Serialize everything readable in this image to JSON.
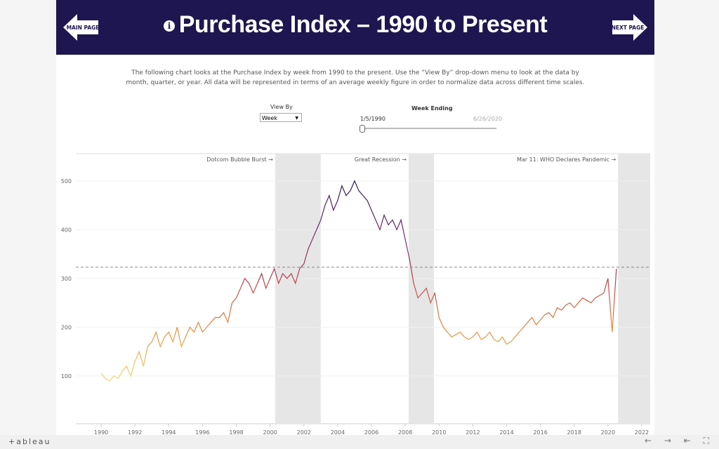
{
  "header": {
    "title": "Purchase Index – 1990 to Present",
    "main_page": "MAIN PAGE",
    "next_page": "NEXT PAGE"
  },
  "description": [
    "The following chart looks at the Purchase Index by week from 1990 to the present. Use the “View By” drop-down menu to look at the data by",
    "month, quarter, or year.  All data will be represented in terms of an average weekly figure in order to normalize data across different time scales."
  ],
  "controls": {
    "view_by_label": "View By",
    "view_by_value": "Week",
    "week_ending_label": "Week Ending",
    "week_ending_start": "1/5/1990",
    "week_ending_end": "6/26/2020"
  },
  "footer": {
    "logo": "+ableau"
  },
  "chart_data": {
    "type": "line",
    "x": [
      1990,
      1990.25,
      1990.5,
      1990.75,
      1991,
      1991.25,
      1991.5,
      1991.75,
      1992,
      1992.25,
      1992.5,
      1992.75,
      1993,
      1993.25,
      1993.5,
      1993.75,
      1994,
      1994.25,
      1994.5,
      1994.75,
      1995,
      1995.25,
      1995.5,
      1995.75,
      1996,
      1996.25,
      1996.5,
      1996.75,
      1997,
      1997.25,
      1997.5,
      1997.75,
      1998,
      1998.25,
      1998.5,
      1998.75,
      1999,
      1999.25,
      1999.5,
      1999.75,
      2000,
      2000.25,
      2000.5,
      2000.75,
      2001,
      2001.25,
      2001.5,
      2001.75,
      2002,
      2002.25,
      2002.5,
      2002.75,
      2003,
      2003.25,
      2003.5,
      2003.75,
      2004,
      2004.25,
      2004.5,
      2004.75,
      2005,
      2005.25,
      2005.5,
      2005.75,
      2006,
      2006.25,
      2006.5,
      2006.75,
      2007,
      2007.25,
      2007.5,
      2007.75,
      2008,
      2008.25,
      2008.5,
      2008.75,
      2009,
      2009.25,
      2009.5,
      2009.75,
      2010,
      2010.25,
      2010.5,
      2010.75,
      2011,
      2011.25,
      2011.5,
      2011.75,
      2012,
      2012.25,
      2012.5,
      2012.75,
      2013,
      2013.25,
      2013.5,
      2013.75,
      2014,
      2014.25,
      2014.5,
      2014.75,
      2015,
      2015.25,
      2015.5,
      2015.75,
      2016,
      2016.25,
      2016.5,
      2016.75,
      2017,
      2017.25,
      2017.5,
      2017.75,
      2018,
      2018.25,
      2018.5,
      2018.75,
      2019,
      2019.25,
      2019.5,
      2019.75,
      2020,
      2020.25,
      2020.5
    ],
    "values": [
      105,
      95,
      90,
      100,
      95,
      110,
      120,
      100,
      130,
      150,
      120,
      160,
      170,
      190,
      160,
      180,
      190,
      170,
      200,
      160,
      180,
      200,
      190,
      210,
      190,
      200,
      210,
      220,
      220,
      230,
      210,
      250,
      260,
      280,
      300,
      290,
      270,
      290,
      310,
      280,
      300,
      320,
      290,
      310,
      300,
      310,
      290,
      320,
      330,
      360,
      380,
      400,
      420,
      450,
      470,
      440,
      460,
      490,
      470,
      480,
      500,
      480,
      470,
      460,
      440,
      420,
      400,
      430,
      410,
      420,
      400,
      420,
      380,
      340,
      290,
      260,
      270,
      280,
      250,
      270,
      220,
      200,
      190,
      180,
      185,
      190,
      180,
      175,
      180,
      190,
      175,
      180,
      190,
      175,
      170,
      180,
      165,
      170,
      180,
      190,
      200,
      210,
      220,
      205,
      215,
      225,
      230,
      220,
      240,
      235,
      245,
      250,
      240,
      250,
      260,
      255,
      250,
      260,
      265,
      270,
      300,
      190,
      320
    ],
    "color_stops": [
      {
        "value": 100,
        "color": "#f2d46b"
      },
      {
        "value": 200,
        "color": "#e48a3c"
      },
      {
        "value": 300,
        "color": "#b93f4f"
      },
      {
        "value": 400,
        "color": "#6e2a72"
      },
      {
        "value": 500,
        "color": "#2b1b4e"
      }
    ],
    "xlim": [
      1988.5,
      2022.5
    ],
    "ylim": [
      2,
      556
    ],
    "xticks": [
      1990,
      1992,
      1994,
      1996,
      1998,
      2000,
      2002,
      2004,
      2006,
      2008,
      2010,
      2012,
      2014,
      2016,
      2018,
      2020,
      2022
    ],
    "yticks": [
      100,
      200,
      300,
      400,
      500
    ],
    "grid": true,
    "reference_line": 323,
    "shaded_periods": [
      {
        "label": "Dotcom Bubble Burst →",
        "range": [
          2000.3,
          2003.0
        ]
      },
      {
        "label": "Great Recession →",
        "range": [
          2008.2,
          2009.7
        ]
      },
      {
        "label": "Mar 11: WHO Declares Pandemic →",
        "range": [
          2020.6,
          2022.5
        ]
      }
    ]
  }
}
